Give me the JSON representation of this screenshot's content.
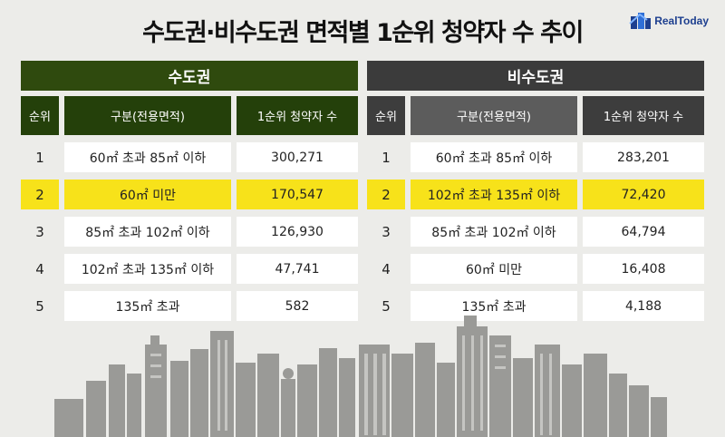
{
  "title": "수도권·비수도권 면적별 1순위 청약자 수 추이",
  "logo": {
    "text": "RealToday",
    "icon": "building-logo-icon"
  },
  "highlight_color": "#f7e21a",
  "tables": {
    "capital": {
      "region": "수도권",
      "headers": [
        "순위",
        "구분(전용면적)",
        "1순위 청약자 수"
      ],
      "rows": [
        {
          "rank": "1",
          "area": "60㎡ 초과 85㎡ 이하",
          "count": "300,271"
        },
        {
          "rank": "2",
          "area": "60㎡ 미만",
          "count": "170,547"
        },
        {
          "rank": "3",
          "area": "85㎡ 초과 102㎡ 이하",
          "count": "126,930"
        },
        {
          "rank": "4",
          "area": "102㎡ 초과 135㎡ 이하",
          "count": "47,741"
        },
        {
          "rank": "5",
          "area": "135㎡ 초과",
          "count": "582"
        }
      ]
    },
    "noncapital": {
      "region": "비수도권",
      "headers": [
        "순위",
        "구분(전용면적)",
        "1순위 청약자 수"
      ],
      "rows": [
        {
          "rank": "1",
          "area": "60㎡ 초과 85㎡ 이하",
          "count": "283,201"
        },
        {
          "rank": "2",
          "area": "102㎡ 초과 135㎡ 이하",
          "count": "72,420"
        },
        {
          "rank": "3",
          "area": "85㎡ 초과 102㎡ 이하",
          "count": "64,794"
        },
        {
          "rank": "4",
          "area": "60㎡ 미만",
          "count": "16,408"
        },
        {
          "rank": "5",
          "area": "135㎡ 초과",
          "count": "4,188"
        }
      ]
    }
  }
}
